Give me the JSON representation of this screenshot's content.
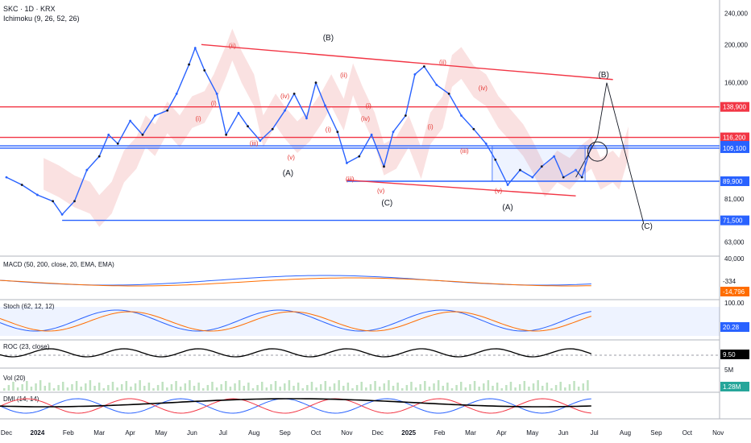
{
  "header": {
    "symbol": "SKC · 1D · KRX",
    "indicator": "Ichimoku (9, 26, 52, 26)"
  },
  "colors": {
    "up": "#2962ff",
    "down": "#131722",
    "red_line": "#f23645",
    "blue_line": "#2962ff",
    "cloud_green": "#a5d6a7",
    "cloud_red": "#ef9a9a",
    "wave_red": "#e53935",
    "macd": "#2962ff",
    "signal": "#ff6d00",
    "roc": "#000000",
    "dmi_plus": "#2962ff",
    "dmi_minus": "#f23645",
    "adx": "#000000"
  },
  "price_axis_ticks": [
    "240,000",
    "200,000",
    "160,000",
    "81,000",
    "63,000"
  ],
  "chart_data": [
    {
      "type": "line",
      "title": "SKC · 1D · KRX",
      "x_ticks": [
        "Dec",
        "2024",
        "Feb",
        "Mar",
        "Apr",
        "May",
        "Jun",
        "Jul",
        "Aug",
        "Sep",
        "Oct",
        "Nov",
        "Dec",
        "2025",
        "Feb",
        "Mar",
        "Apr",
        "May",
        "Jun",
        "Jul",
        "Aug",
        "Sep",
        "Oct",
        "Nov"
      ],
      "y_scale": "log",
      "ylim": [
        58000,
        250000
      ],
      "x_index_range": [
        0,
        23
      ],
      "price_series": {
        "name": "",
        "x": [
          0.0,
          0.5,
          1.0,
          1.5,
          1.8,
          2.2,
          2.6,
          3.0,
          3.3,
          3.6,
          4.0,
          4.4,
          4.8,
          5.2,
          5.5,
          5.9,
          6.1,
          6.4,
          6.8,
          7.1,
          7.5,
          7.8,
          8.2,
          8.6,
          9.0,
          9.3,
          9.7,
          10.0,
          10.3,
          10.7,
          11.0,
          11.4,
          11.8,
          12.2,
          12.5,
          12.9,
          13.2,
          13.5,
          13.9,
          14.3,
          14.7,
          15.1,
          15.5,
          15.8,
          16.2,
          16.6,
          17.0,
          17.3,
          17.7,
          18.0,
          18.4,
          18.6,
          18.9
        ],
        "values": [
          92000,
          88000,
          83000,
          80000,
          74000,
          80000,
          96000,
          104000,
          118000,
          112000,
          128000,
          118000,
          132000,
          136000,
          150000,
          178000,
          196000,
          172000,
          150000,
          118000,
          134000,
          124000,
          114000,
          122000,
          136000,
          150000,
          130000,
          160000,
          140000,
          120000,
          100000,
          104000,
          118000,
          98000,
          120000,
          132000,
          168000,
          176000,
          158000,
          150000,
          132000,
          122000,
          112000,
          102000,
          88000,
          96000,
          92000,
          98000,
          104000,
          92000,
          96000,
          92000,
          110600
        ]
      },
      "levels": [
        {
          "value": "138,900",
          "color": "red"
        },
        {
          "value": "116,200",
          "color": "red"
        },
        {
          "value": "110,600",
          "color": "blue"
        },
        {
          "value": "109,100",
          "color": "blue"
        },
        {
          "value": "89,900",
          "color": "blue"
        },
        {
          "value": "71,500",
          "color": "blue"
        }
      ],
      "wave_labels": {
        "black": [
          "(B)",
          "(A)",
          "(C)",
          "(A)",
          "(B)",
          "(C)"
        ],
        "red": [
          "(i)",
          "(i)",
          "(ii)",
          "(ii)",
          "(iii)",
          "(iii)",
          "(iii)",
          "(iv)",
          "(iv)",
          "(iv)",
          "(v)",
          "(v)",
          "(v)",
          "(i)",
          "(i)",
          "(i)",
          "(ii)"
        ]
      }
    },
    {
      "type": "line",
      "title": "MACD (50, 200, close, 20, EMA, EMA)",
      "axis_tick": "40,000",
      "values_shown": [
        "-334",
        "-14,796"
      ]
    },
    {
      "type": "line",
      "title": "Stoch (62, 12, 12)",
      "axis_tick": "100.00",
      "values_shown": [
        "20.28"
      ]
    },
    {
      "type": "line",
      "title": "ROC (23, close)",
      "values_shown": [
        "9.50"
      ]
    },
    {
      "type": "bar",
      "title": "Vol (20)",
      "axis_tick": "5M",
      "values_shown": [
        "1.28M"
      ]
    },
    {
      "type": "line",
      "title": "DMI (14, 14)",
      "values_shown": []
    }
  ]
}
